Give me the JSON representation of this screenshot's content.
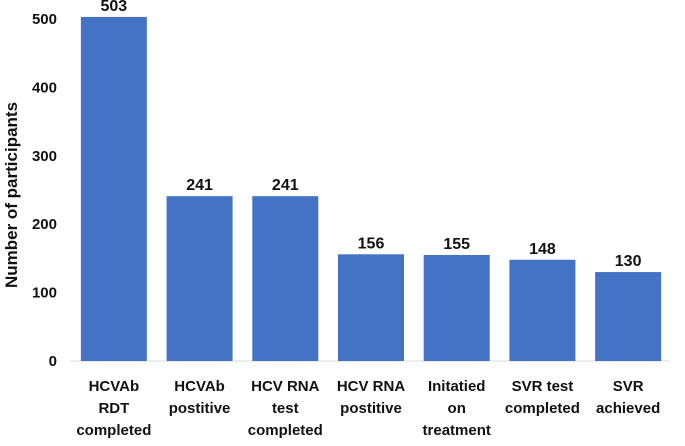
{
  "chart_data": {
    "type": "bar",
    "title": "",
    "xlabel": "",
    "ylabel": "Number of participants",
    "ylim": [
      0,
      500
    ],
    "yticks": [
      0,
      100,
      200,
      300,
      400,
      500
    ],
    "grid": false,
    "categories": [
      [
        "HCVAb",
        "RDT",
        "completed"
      ],
      [
        "HCVAb",
        "postitive"
      ],
      [
        "HCV RNA",
        "test",
        "completed"
      ],
      [
        "HCV RNA",
        "postitive"
      ],
      [
        "Initatied",
        "on",
        "treatment"
      ],
      [
        "SVR test",
        "completed"
      ],
      [
        "SVR",
        "achieved"
      ]
    ],
    "values": [
      503,
      241,
      241,
      156,
      155,
      148,
      130
    ],
    "bar_color": "#4472C4"
  }
}
